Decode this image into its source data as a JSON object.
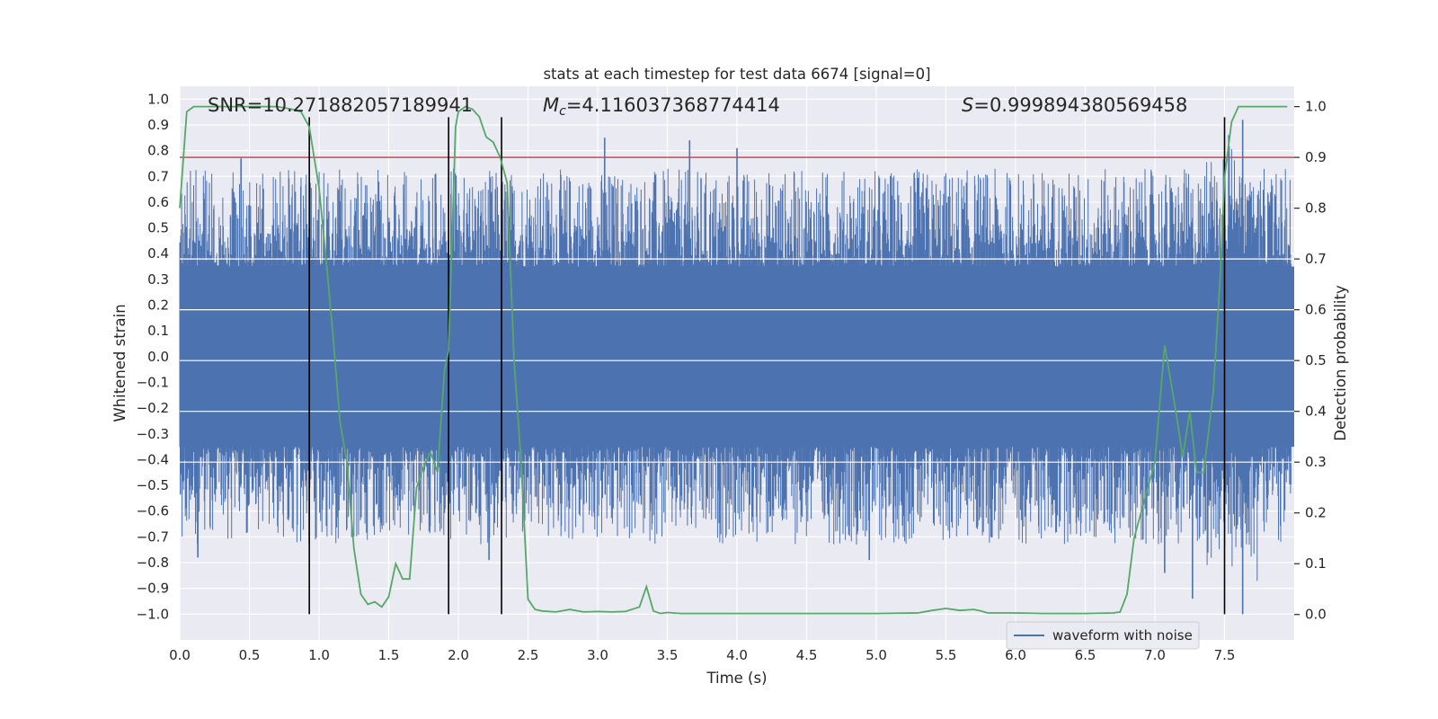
{
  "chart_data": {
    "type": "line",
    "title": "stats at each timestep for test data 6674 [signal=0]",
    "xlabel": "Time (s)",
    "ylabel": "Whitened strain",
    "y2label": "Detection probability",
    "xlim": [
      0.0,
      8.0
    ],
    "ylim": [
      -1.1,
      1.05
    ],
    "y2lim": [
      -0.05,
      1.04
    ],
    "xticks": [
      0.0,
      0.5,
      1.0,
      1.5,
      2.0,
      2.5,
      3.0,
      3.5,
      4.0,
      4.5,
      5.0,
      5.5,
      6.0,
      6.5,
      7.0,
      7.5
    ],
    "xtick_labels": [
      "0.0",
      "0.5",
      "1.0",
      "1.5",
      "2.0",
      "2.5",
      "3.0",
      "3.5",
      "4.0",
      "4.5",
      "5.0",
      "5.5",
      "6.0",
      "6.5",
      "7.0",
      "7.5"
    ],
    "yticks": [
      -1.0,
      -0.9,
      -0.8,
      -0.7,
      -0.6,
      -0.5,
      -0.4,
      -0.3,
      -0.2,
      -0.1,
      0.0,
      0.1,
      0.2,
      0.3,
      0.4,
      0.5,
      0.6,
      0.7,
      0.8,
      0.9,
      1.0
    ],
    "ytick_labels": [
      "−1.0",
      "−0.9",
      "−0.8",
      "−0.7",
      "−0.6",
      "−0.5",
      "−0.4",
      "−0.3",
      "−0.2",
      "−0.1",
      "0.0",
      "0.1",
      "0.2",
      "0.3",
      "0.4",
      "0.5",
      "0.6",
      "0.7",
      "0.8",
      "0.9",
      "1.0"
    ],
    "y2ticks": [
      0.0,
      0.1,
      0.2,
      0.3,
      0.4,
      0.5,
      0.6,
      0.7,
      0.8,
      0.9,
      1.0
    ],
    "y2tick_labels": [
      "0.0",
      "0.1",
      "0.2",
      "0.3",
      "0.4",
      "0.5",
      "0.6",
      "0.7",
      "0.8",
      "0.9",
      "1.0"
    ],
    "annotations": {
      "snr": "SNR=10.271882057189941",
      "mc_symbol": "M",
      "mc_sub": "c",
      "mc_value": "=4.116037368774414",
      "s_symbol": "S",
      "s_value": "=0.999894380569458"
    },
    "threshold": {
      "value": 0.9,
      "axis": "y2"
    },
    "vlines": [
      0.93,
      1.93,
      2.31,
      7.5
    ],
    "waveform": {
      "name": "waveform with noise",
      "duration_s": 8.0,
      "core_amplitude": 0.35,
      "notable_peaks": [
        {
          "t": 0.44,
          "v": 0.77
        },
        {
          "t": 3.05,
          "v": 0.85
        },
        {
          "t": 3.66,
          "v": 0.84
        },
        {
          "t": 4.0,
          "v": 0.81
        },
        {
          "t": 7.63,
          "v": 0.92
        },
        {
          "t": 7.53,
          "v": 0.86
        },
        {
          "t": 0.13,
          "v": -0.78
        },
        {
          "t": 2.22,
          "v": -0.79
        },
        {
          "t": 4.95,
          "v": -0.79
        },
        {
          "t": 7.63,
          "v": -1.0
        },
        {
          "t": 7.27,
          "v": -0.94
        },
        {
          "t": 7.07,
          "v": -0.84
        }
      ]
    },
    "detection_probability": {
      "t": [
        0.0,
        0.05,
        0.1,
        0.2,
        0.4,
        0.6,
        0.7,
        0.8,
        0.87,
        0.93,
        1.0,
        1.05,
        1.1,
        1.15,
        1.2,
        1.25,
        1.3,
        1.35,
        1.4,
        1.45,
        1.5,
        1.55,
        1.6,
        1.65,
        1.7,
        1.75,
        1.8,
        1.85,
        1.9,
        1.93,
        1.98,
        2.0,
        2.05,
        2.1,
        2.15,
        2.2,
        2.25,
        2.3,
        2.35,
        2.4,
        2.45,
        2.5,
        2.55,
        2.6,
        2.7,
        2.8,
        2.9,
        3.0,
        3.1,
        3.2,
        3.3,
        3.35,
        3.4,
        3.45,
        3.5,
        3.6,
        3.7,
        3.8,
        4.0,
        4.5,
        4.9,
        5.0,
        5.3,
        5.4,
        5.5,
        5.6,
        5.7,
        5.75,
        5.8,
        5.9,
        6.0,
        6.2,
        6.5,
        6.7,
        6.75,
        6.8,
        6.85,
        6.9,
        7.0,
        7.07,
        7.15,
        7.2,
        7.25,
        7.3,
        7.35,
        7.42,
        7.47,
        7.5,
        7.55,
        7.6,
        7.7,
        7.8,
        7.95
      ],
      "p": [
        0.8,
        0.99,
        1.0,
        1.0,
        1.0,
        1.0,
        1.0,
        0.995,
        0.99,
        0.96,
        0.84,
        0.7,
        0.55,
        0.38,
        0.3,
        0.13,
        0.04,
        0.02,
        0.025,
        0.015,
        0.035,
        0.1,
        0.07,
        0.07,
        0.25,
        0.29,
        0.32,
        0.28,
        0.48,
        0.52,
        0.96,
        0.99,
        1.0,
        0.995,
        0.98,
        0.94,
        0.93,
        0.9,
        0.85,
        0.5,
        0.3,
        0.03,
        0.01,
        0.007,
        0.005,
        0.01,
        0.005,
        0.006,
        0.005,
        0.006,
        0.015,
        0.055,
        0.007,
        0.002,
        0.004,
        0.002,
        0.002,
        0.002,
        0.002,
        0.002,
        0.002,
        0.002,
        0.003,
        0.008,
        0.012,
        0.008,
        0.01,
        0.007,
        0.003,
        0.003,
        0.003,
        0.002,
        0.002,
        0.003,
        0.005,
        0.04,
        0.15,
        0.2,
        0.3,
        0.53,
        0.4,
        0.31,
        0.4,
        0.28,
        0.28,
        0.44,
        0.67,
        0.86,
        0.97,
        1.0,
        1.0,
        1.0,
        1.0
      ]
    },
    "legend": {
      "label": "waveform with noise",
      "placement": "lower-right"
    },
    "colors": {
      "background": "#eaeaf2",
      "grid": "#ffffff",
      "waveform": "#4c72b0",
      "probability": "#55a868",
      "threshold": "#c44e52",
      "vline": "#000000",
      "text": "#262626"
    }
  }
}
